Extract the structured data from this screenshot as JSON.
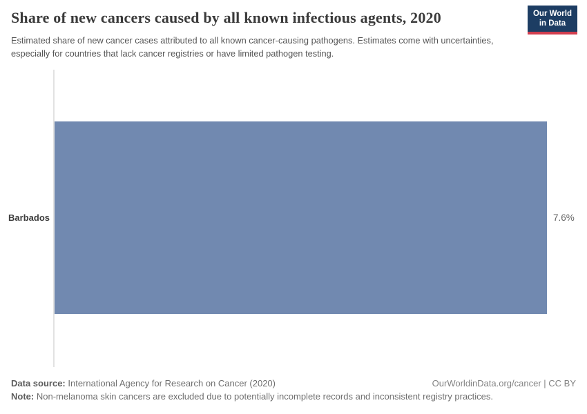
{
  "header": {
    "title": "Share of new cancers caused by all known infectious agents, 2020",
    "subtitle": "Estimated share of new cancer cases attributed to all known cancer-causing pathogens. Estimates come with uncertainties, especially for countries that lack cancer registries or have limited pathogen testing.",
    "logo": {
      "line1": "Our World",
      "line2": "in Data",
      "bg_color": "#1d3d63",
      "accent_color": "#d13d4e"
    }
  },
  "chart_data": {
    "type": "bar",
    "orientation": "horizontal",
    "title": "Share of new cancers caused by all known infectious agents, 2020",
    "categories": [
      "Barbados"
    ],
    "values": [
      7.6
    ],
    "value_labels": [
      "7.6%"
    ],
    "xlim": [
      0,
      7.6
    ],
    "grid": false,
    "legend": "none",
    "bar_color": "#7189b0"
  },
  "footer": {
    "data_source_label": "Data source:",
    "data_source_text": "International Agency for Research on Cancer (2020)",
    "attribution": "OurWorldinData.org/cancer | CC BY",
    "note_label": "Note:",
    "note_text": "Non-melanoma skin cancers are excluded due to potentially incomplete records and inconsistent registry practices."
  }
}
